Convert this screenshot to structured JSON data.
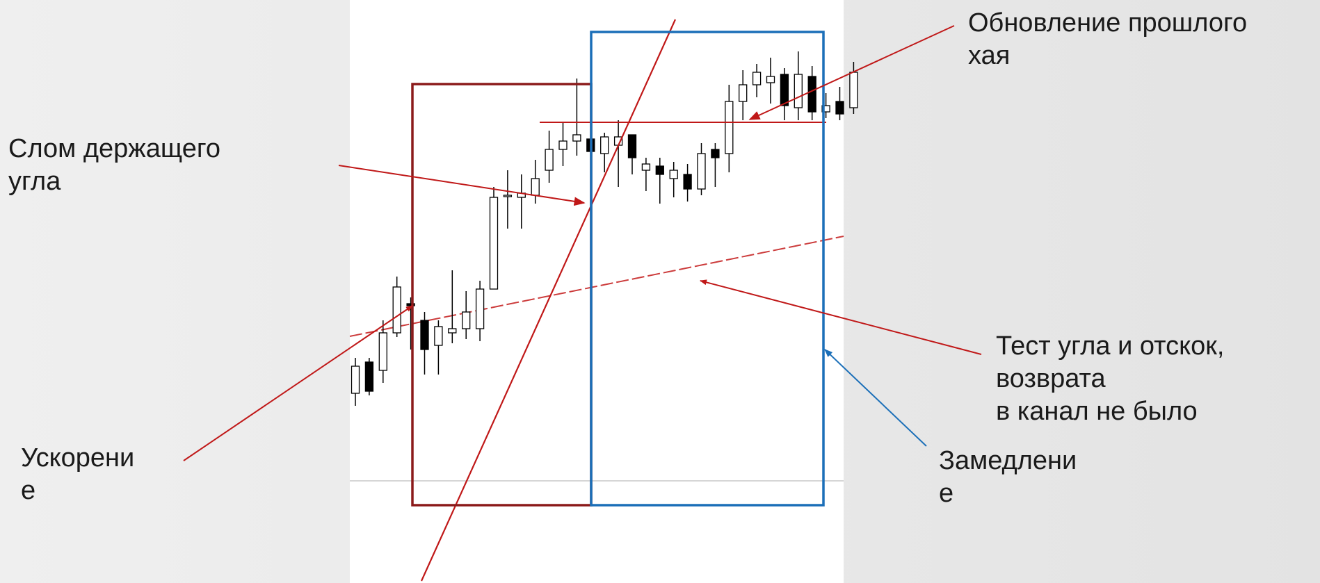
{
  "colors": {
    "chart_background": "#ffffff",
    "acceleration_box": "#8b1a1a",
    "deceleration_box": "#1b6fb8",
    "annotation_red": "#c01818",
    "annotation_blue": "#1b6fb8",
    "candle_stroke": "#000000",
    "bear_fill": "#000000",
    "bull_fill": "#ffffff"
  },
  "annotations": {
    "break_angle": {
      "lines": [
        "Слом держащего",
        "угла"
      ]
    },
    "prior_high": {
      "lines": [
        "Обновление прошлого",
        "хая"
      ]
    },
    "angle_test": {
      "lines": [
        "Тест угла  и отскок,",
        "возврата",
        "в канал не было"
      ]
    },
    "acceleration": {
      "lines": [
        "Ускорени",
        "е"
      ]
    },
    "deceleration": {
      "lines": [
        "Замедлени",
        "е"
      ]
    }
  },
  "chart": {
    "candles": [
      [
        104,
        91,
        108,
        85,
        "bull"
      ],
      [
        106,
        92,
        108,
        90,
        "bear"
      ],
      [
        102,
        120,
        126,
        96,
        "bull"
      ],
      [
        120,
        142,
        147,
        118,
        "bull"
      ],
      [
        134,
        133,
        137,
        112,
        "bear"
      ],
      [
        126,
        112,
        130,
        100,
        "bear"
      ],
      [
        114,
        123,
        126,
        100,
        "bull"
      ],
      [
        120,
        122,
        150,
        115,
        "bull"
      ],
      [
        122,
        130,
        140,
        117,
        "bull"
      ],
      [
        122,
        141,
        145,
        116,
        "bull"
      ],
      [
        141,
        185,
        190,
        141,
        "bull"
      ],
      [
        186,
        186,
        198,
        170,
        "bull"
      ],
      [
        185,
        187,
        196,
        170,
        "bull"
      ],
      [
        186,
        194,
        203,
        182,
        "bull"
      ],
      [
        198,
        208,
        217,
        192,
        "bull"
      ],
      [
        208,
        212,
        221,
        200,
        "bull"
      ],
      [
        212,
        215,
        242,
        205,
        "bull"
      ],
      [
        213,
        207,
        215,
        202,
        "bear"
      ],
      [
        206,
        214,
        216,
        197,
        "bull"
      ],
      [
        210,
        214,
        222,
        190,
        "bull"
      ],
      [
        215,
        204,
        215,
        196,
        "bear"
      ],
      [
        198,
        201,
        204,
        188,
        "bull"
      ],
      [
        200,
        196,
        204,
        182,
        "bear"
      ],
      [
        194,
        198,
        202,
        185,
        "bull"
      ],
      [
        196,
        189,
        201,
        183,
        "bear"
      ],
      [
        189,
        206,
        211,
        186,
        "bull"
      ],
      [
        208,
        204,
        211,
        190,
        "bear"
      ],
      [
        206,
        231,
        239,
        197,
        "bull"
      ],
      [
        231,
        239,
        246,
        222,
        "bull"
      ],
      [
        239,
        245,
        249,
        233,
        "bull"
      ],
      [
        243,
        240,
        252,
        230,
        "bull"
      ],
      [
        244,
        229,
        247,
        222,
        "bear"
      ],
      [
        228,
        244,
        255,
        222,
        "bull"
      ],
      [
        243,
        226,
        248,
        222,
        "bear"
      ],
      [
        226,
        229,
        235,
        223,
        "bull"
      ],
      [
        231,
        225,
        238,
        222,
        "bear"
      ],
      [
        228,
        245,
        250,
        225,
        "bull"
      ]
    ],
    "prior_high_level": 242,
    "price_axis_line": 97
  }
}
